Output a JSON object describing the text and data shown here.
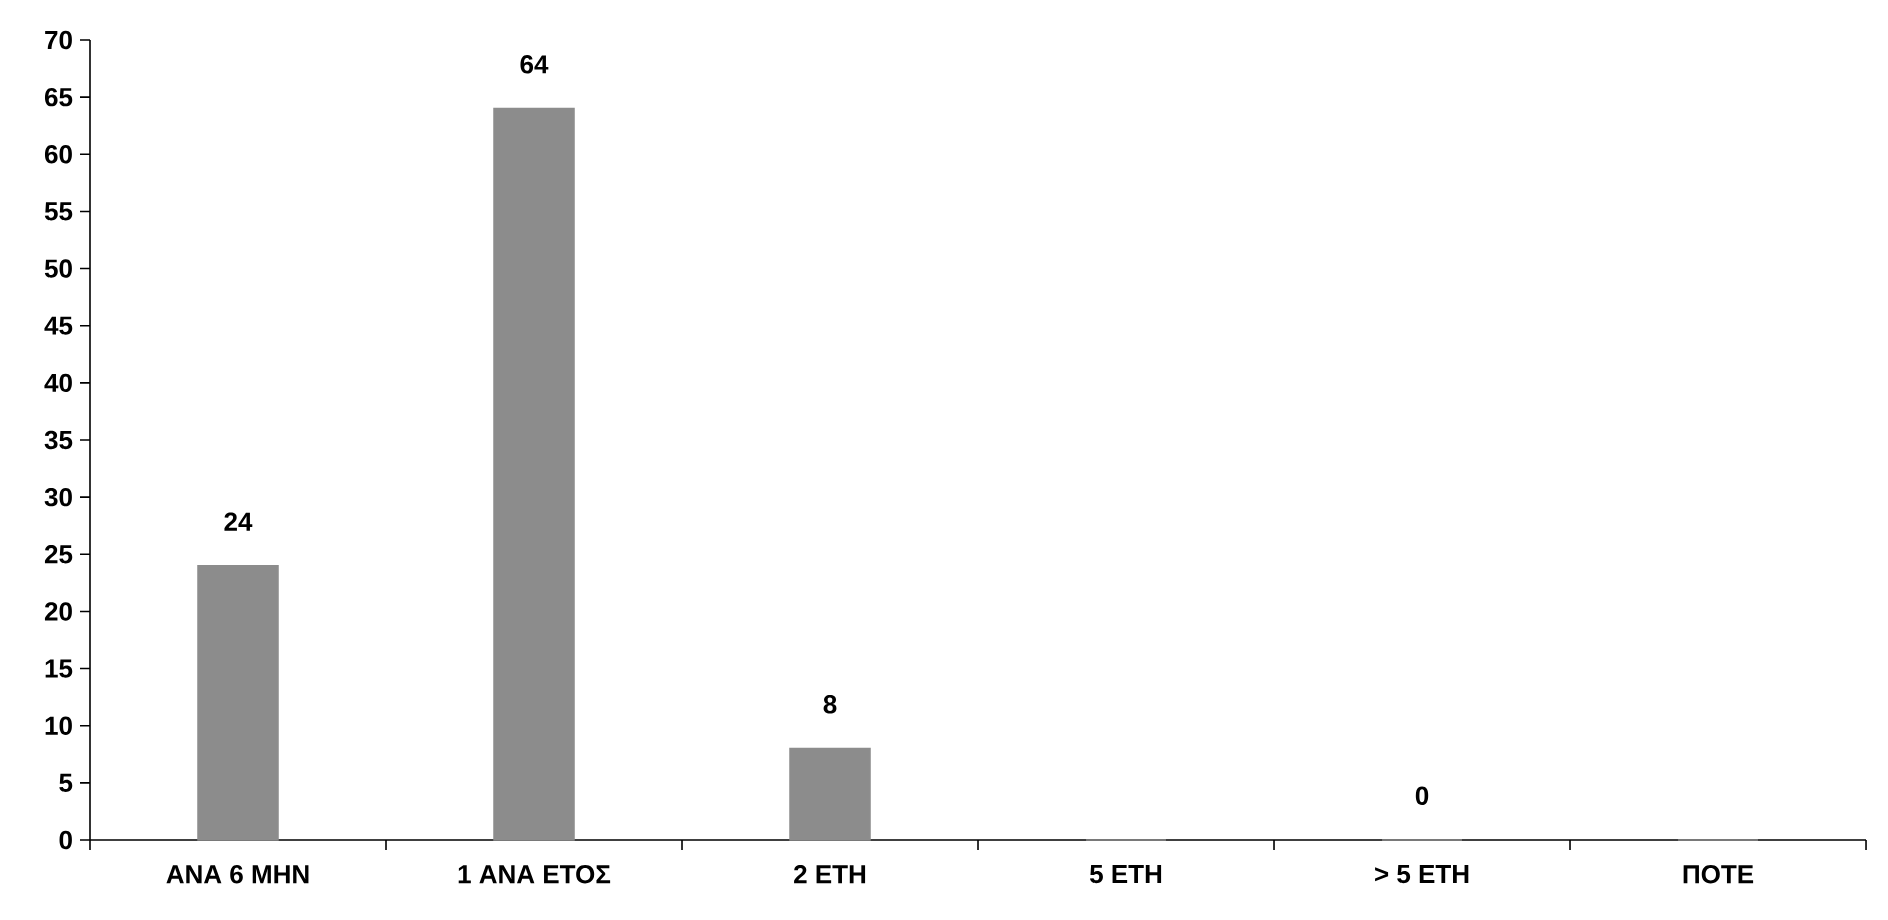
{
  "chart_data": {
    "type": "bar",
    "categories": [
      "ΑΝΑ 6 ΜΗΝ",
      "1 ΑΝΑ ΕΤΟΣ",
      "2 ΕΤΗ",
      "5 ΕΤΗ",
      "> 5 ΕΤΗ",
      "ΠΟΤΕ"
    ],
    "values": [
      24,
      64,
      8,
      0,
      0,
      0
    ],
    "value_labels": [
      "24",
      "64",
      "8",
      null,
      "0",
      null
    ],
    "color": "#8c8c8c",
    "ylim": [
      0,
      70
    ],
    "yticks": [
      0,
      5,
      10,
      15,
      20,
      25,
      30,
      35,
      40,
      45,
      50,
      55,
      60,
      65,
      70
    ]
  }
}
